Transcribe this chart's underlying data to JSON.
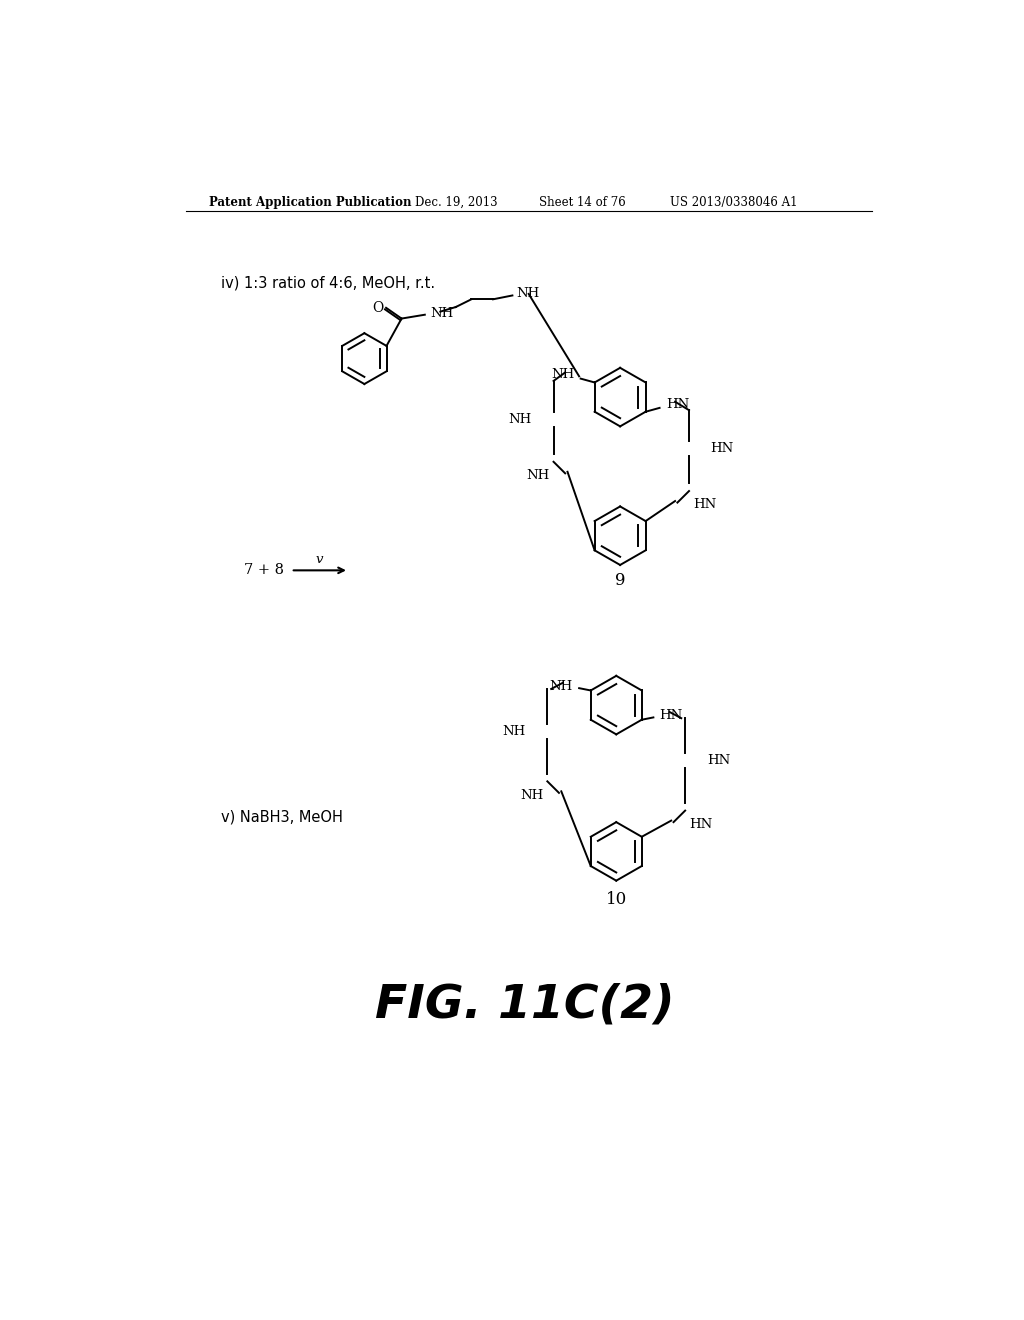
{
  "bg_color": "#ffffff",
  "header_text": "Patent Application Publication",
  "header_date": "Dec. 19, 2013",
  "header_sheet": "Sheet 14 of 76",
  "header_patent": "US 2013/0338046 A1",
  "fig_label": "FIG. 11C(2)",
  "step_iv_label": "iv) 1:3 ratio of 4:6, MeOH, r.t.",
  "step_v_label": "v) NaBH3, MeOH",
  "compound_9": "9",
  "compound_10": "10"
}
